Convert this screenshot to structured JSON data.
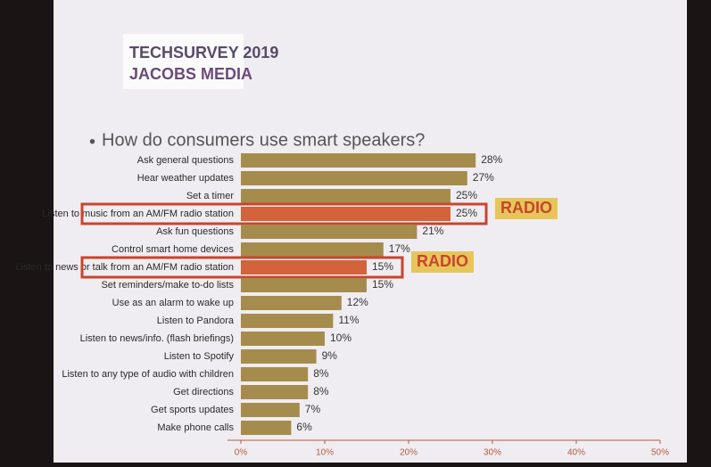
{
  "chart_data": {
    "type": "bar",
    "orientation": "horizontal",
    "logo_line1": "TECHSURVEY 2019",
    "logo_line2": "JACOBS MEDIA",
    "title": "How do consumers use smart speakers?",
    "categories": [
      "Ask general questions",
      "Hear weather updates",
      "Set a timer",
      "Listen to music from an AM/FM radio station",
      "Ask fun questions",
      "Control smart home devices",
      "Listen to news or talk from an AM/FM radio station",
      "Set reminders/make to-do lists",
      "Use as an alarm to wake up",
      "Listen to Pandora",
      "Listen to news/info. (flash briefings)",
      "Listen to Spotify",
      "Listen to any type of audio with children",
      "Get directions",
      "Get sports updates",
      "Make phone calls"
    ],
    "values": [
      28,
      27,
      25,
      25,
      21,
      17,
      15,
      15,
      12,
      11,
      10,
      9,
      8,
      8,
      7,
      6
    ],
    "value_labels": [
      "28%",
      "27%",
      "25%",
      "25%",
      "21%",
      "17%",
      "15%",
      "15%",
      "12%",
      "11%",
      "10%",
      "9%",
      "8%",
      "8%",
      "7%",
      "6%"
    ],
    "colors": [
      "#a68c4c",
      "#a68c4c",
      "#a68c4c",
      "#d4623a",
      "#a68c4c",
      "#a68c4c",
      "#d4623a",
      "#a68c4c",
      "#a68c4c",
      "#a68c4c",
      "#a68c4c",
      "#a68c4c",
      "#a68c4c",
      "#a68c4c",
      "#a68c4c",
      "#a68c4c"
    ],
    "annotations": [
      "RADIO",
      "RADIO"
    ],
    "xlim": [
      0,
      50
    ],
    "xticks": [
      {
        "value": 0,
        "label": "0%"
      },
      {
        "value": 10,
        "label": "10%"
      },
      {
        "value": 20,
        "label": "20%"
      },
      {
        "value": 30,
        "label": "30%"
      },
      {
        "value": 40,
        "label": "40%"
      },
      {
        "value": 50,
        "label": "50%"
      }
    ]
  }
}
